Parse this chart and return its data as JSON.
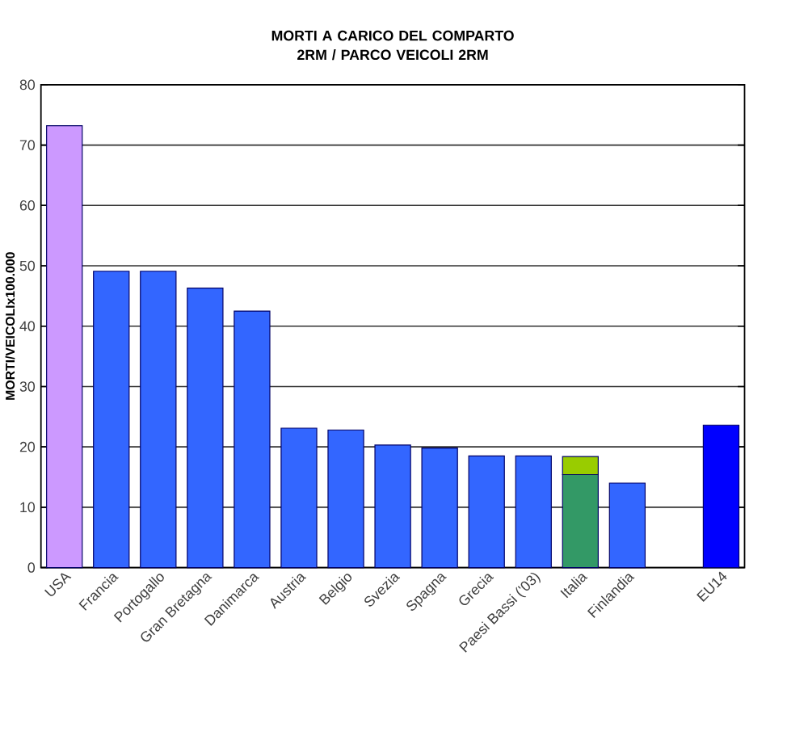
{
  "chart_data": {
    "type": "bar",
    "title": "MORTI A CARICO DEL COMPARTO 2RM / PARCO VEICOLI 2RM",
    "ylabel": "MORTI/VEICOLIx100.000",
    "categories": [
      "USA",
      "Francia",
      "Portogallo",
      "Gran Bretagna",
      "Danimarca",
      "Austria",
      "Belgio",
      "Svezia",
      "Spagna",
      "Grecia",
      "Paesi Bassi ('03)",
      "Italia",
      "Finlandia",
      null,
      "EU14"
    ],
    "stacked": true,
    "series": [
      {
        "colors": [
          "#cc99ff",
          "#3366ff",
          "#3366ff",
          "#3366ff",
          "#3366ff",
          "#3366ff",
          "#3366ff",
          "#3366ff",
          "#3366ff",
          "#3366ff",
          "#3366ff",
          "#339966",
          "#3366ff",
          "#3366ff",
          "#0000ff"
        ],
        "values": [
          73.2,
          49.1,
          49.1,
          46.3,
          42.5,
          23.1,
          22.8,
          20.3,
          19.8,
          18.5,
          18.5,
          15.4,
          14.0,
          null,
          23.6
        ]
      },
      {
        "color": "#99cc00",
        "values": [
          null,
          null,
          null,
          null,
          null,
          null,
          null,
          null,
          null,
          null,
          null,
          3.0,
          null,
          null,
          null
        ]
      }
    ],
    "ylim": [
      0,
      80
    ],
    "yticks": [
      0,
      10,
      20,
      30,
      40,
      50,
      60,
      70,
      80
    ],
    "grid": "y"
  }
}
